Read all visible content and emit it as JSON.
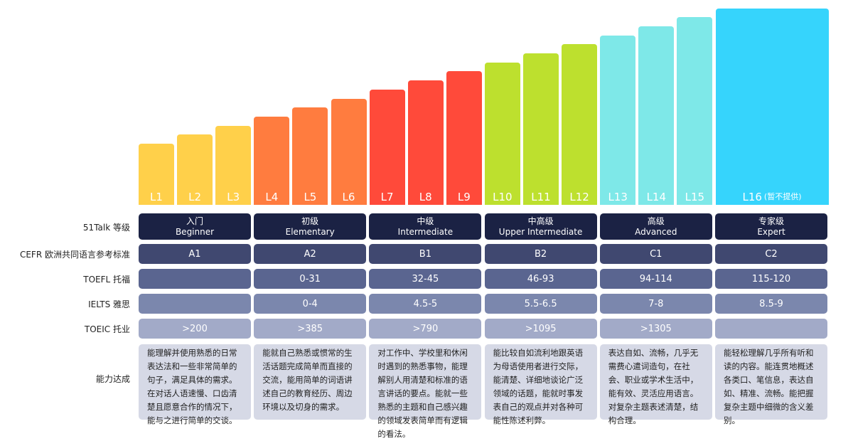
{
  "levels": [
    {
      "label": "L1",
      "color": "#ffd04a"
    },
    {
      "label": "L2",
      "color": "#ffd04a"
    },
    {
      "label": "L3",
      "color": "#ffd04a"
    },
    {
      "label": "L4",
      "color": "#ff7c3f"
    },
    {
      "label": "L5",
      "color": "#ff7c3f"
    },
    {
      "label": "L6",
      "color": "#ff7c3f"
    },
    {
      "label": "L7",
      "color": "#ff4a3a"
    },
    {
      "label": "L8",
      "color": "#ff4a3a"
    },
    {
      "label": "L9",
      "color": "#ff4a3a"
    },
    {
      "label": "L10",
      "color": "#bde02e"
    },
    {
      "label": "L11",
      "color": "#bde02e"
    },
    {
      "label": "L12",
      "color": "#bde02e"
    },
    {
      "label": "L13",
      "color": "#7ee8e8"
    },
    {
      "label": "L14",
      "color": "#7ee8e8"
    },
    {
      "label": "L15",
      "color": "#7ee8e8"
    },
    {
      "label": "L16",
      "note": "(暂不提供)",
      "color": "#36d4fc"
    }
  ],
  "row_labels": {
    "talk": "51Talk 等级",
    "cefr": "CEFR 欧洲共同语言参考标准",
    "toefl": "TOEFL 托福",
    "ielts": "IELTS 雅思",
    "toeic": "TOEIC 托业",
    "ability": "能力达成"
  },
  "groups": [
    {
      "cn": "入门",
      "en": "Beginner",
      "cefr": "A1",
      "toefl": "",
      "ielts": "",
      "toeic": ">200",
      "ability": "能理解并使用熟悉的日常表达法和一些非常简单的句子，满足具体的需求。在对话人语速慢、口齿清楚且愿意合作的情况下，能与之进行简单的交谈。"
    },
    {
      "cn": "初级",
      "en": "Elementary",
      "cefr": "A2",
      "toefl": "0-31",
      "ielts": "0-4",
      "toeic": ">385",
      "ability": "能就自己熟悉或惯常的生活话题完成简单而直接的交流，能用简单的词语讲述自己的教育经历、周边环境以及切身的需求。"
    },
    {
      "cn": "中级",
      "en": "Intermediate",
      "cefr": "B1",
      "toefl": "32-45",
      "ielts": "4.5-5",
      "toeic": ">790",
      "ability": "对工作中、学校里和休闲时遇到的熟悉事物，能理解别人用清楚和标准的语言讲话的要点。能就一些熟悉的主题和自己感兴趣的领域发表简单而有逻辑的看法。"
    },
    {
      "cn": "中高级",
      "en": "Upper Intermediate",
      "cefr": "B2",
      "toefl": "46-93",
      "ielts": "5.5-6.5",
      "toeic": ">1095",
      "ability": "能比较自如流利地跟英语为母语使用者进行交际，能清楚、详细地谈论广泛领域的话题，能就时事发表自己的观点并对各种可能性陈述利弊。"
    },
    {
      "cn": "高级",
      "en": "Advanced",
      "cefr": "C1",
      "toefl": "94-114",
      "ielts": "7-8",
      "toeic": ">1305",
      "ability": "表达自如、流畅，几乎无需费心遣词造句，在社会、职业或学术生活中，能有效、灵活应用语言。对复杂主题表述清楚，结构合理。"
    },
    {
      "cn": "专家级",
      "en": "Expert",
      "cefr": "C2",
      "toefl": "115-120",
      "ielts": "8.5-9",
      "toeic": "",
      "ability": "能轻松理解几乎所有听和读的内容。能连贯地概述各类口、笔信息，表达自如、精准、流畅。能把握复杂主题中细微的含义差别。"
    }
  ]
}
